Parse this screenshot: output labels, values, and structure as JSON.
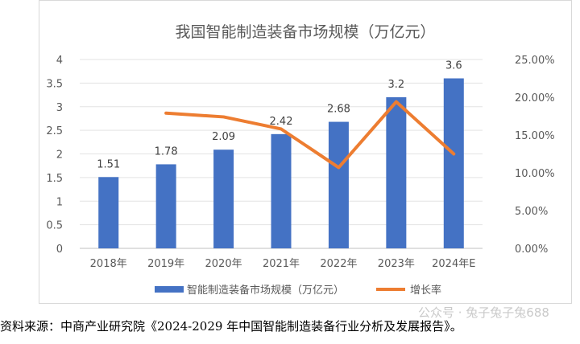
{
  "chart_data": {
    "type": "bar",
    "title": "我国智能制造装备市场规模（万亿元）",
    "categories": [
      "2018年",
      "2019年",
      "2020年",
      "2021年",
      "2022年",
      "2023年",
      "2024年E"
    ],
    "series": [
      {
        "name": "智能制造装备市场规模（万亿元）",
        "type": "bar",
        "axis": "left",
        "color": "#4472c4",
        "values": [
          1.51,
          1.78,
          2.09,
          2.42,
          2.68,
          3.2,
          3.6
        ],
        "labels": [
          "1.51",
          "1.78",
          "2.09",
          "2.42",
          "2.68",
          "3.2",
          "3.6"
        ]
      },
      {
        "name": "增长率",
        "type": "line",
        "axis": "right",
        "color": "#ed7d31",
        "values": [
          null,
          17.9,
          17.4,
          15.8,
          10.7,
          19.4,
          12.5
        ]
      }
    ],
    "y_left": {
      "min": 0,
      "max": 4,
      "step": 0.5,
      "ticks": [
        "0",
        "0.5",
        "1",
        "1.5",
        "2",
        "2.5",
        "3",
        "3.5",
        "4"
      ]
    },
    "y_right": {
      "min": 0,
      "max": 25,
      "step": 5,
      "ticks": [
        "0.00%",
        "5.00%",
        "10.00%",
        "15.00%",
        "20.00%",
        "25.00%"
      ]
    },
    "grid": true,
    "legend_position": "bottom"
  },
  "source_note": "资料来源：中商产业研究院《2024-2029 年中国智能制造装备行业分析及发展报告》。",
  "watermark": "公众号 · 兔子兔子兔688"
}
